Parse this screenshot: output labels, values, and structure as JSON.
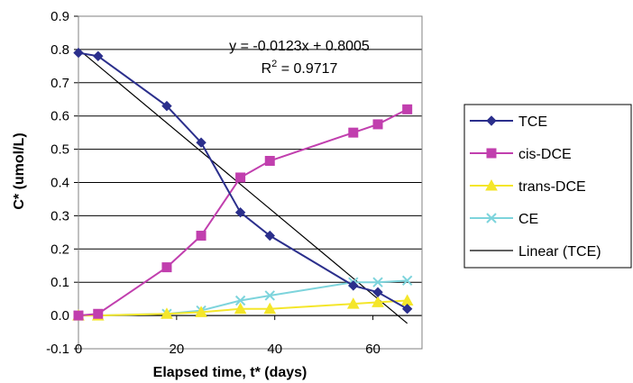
{
  "chart_data": {
    "type": "line",
    "xlabel": "Elapsed time, t* (days)",
    "ylabel": "C* (umol/L)",
    "xlim": [
      0,
      70
    ],
    "ylim": [
      -0.1,
      0.9
    ],
    "x_ticks": [
      0,
      20,
      40,
      60
    ],
    "y_ticks": [
      -0.1,
      0.0,
      0.1,
      0.2,
      0.3,
      0.4,
      0.5,
      0.6,
      0.7,
      0.8,
      0.9
    ],
    "y_tick_labels": [
      "-0.1",
      "0.0",
      "0.1",
      "0.2",
      "0.3",
      "0.4",
      "0.5",
      "0.6",
      "0.7",
      "0.8",
      "0.9"
    ],
    "x_tick_labels": [
      "0",
      "20",
      "40",
      "60"
    ],
    "grid": "horizontal",
    "legend_position": "right",
    "series": [
      {
        "name": "TCE",
        "color": "#2b2f8c",
        "marker": "diamond",
        "x": [
          0,
          4,
          18,
          25,
          33,
          39,
          56,
          61,
          67
        ],
        "y": [
          0.79,
          0.78,
          0.63,
          0.52,
          0.31,
          0.24,
          0.09,
          0.07,
          0.02
        ]
      },
      {
        "name": "cis-DCE",
        "color": "#c13fae",
        "marker": "square",
        "x": [
          0,
          4,
          18,
          25,
          33,
          39,
          56,
          61,
          67
        ],
        "y": [
          0.0,
          0.005,
          0.145,
          0.24,
          0.415,
          0.465,
          0.55,
          0.575,
          0.62
        ]
      },
      {
        "name": "trans-DCE",
        "color": "#f4e62a",
        "marker": "triangle",
        "x": [
          0,
          4,
          18,
          25,
          33,
          39,
          56,
          61,
          67
        ],
        "y": [
          0.0,
          0.0,
          0.005,
          0.01,
          0.02,
          0.02,
          0.035,
          0.04,
          0.045
        ]
      },
      {
        "name": "CE",
        "color": "#7dd4dc",
        "marker": "x",
        "x": [
          0,
          4,
          18,
          25,
          33,
          39,
          56,
          61,
          67
        ],
        "y": [
          0.0,
          0.0,
          0.005,
          0.015,
          0.045,
          0.06,
          0.1,
          0.1,
          0.105
        ]
      }
    ],
    "trendline": {
      "name": "Linear (TCE)",
      "color": "#000000",
      "slope": -0.0123,
      "intercept": 0.8005,
      "x_range": [
        0,
        67
      ],
      "equation": "y = -0.0123x + 0.8005",
      "r2_label": "R",
      "r2_sup": "2",
      "r2_value": " = 0.9717"
    }
  }
}
